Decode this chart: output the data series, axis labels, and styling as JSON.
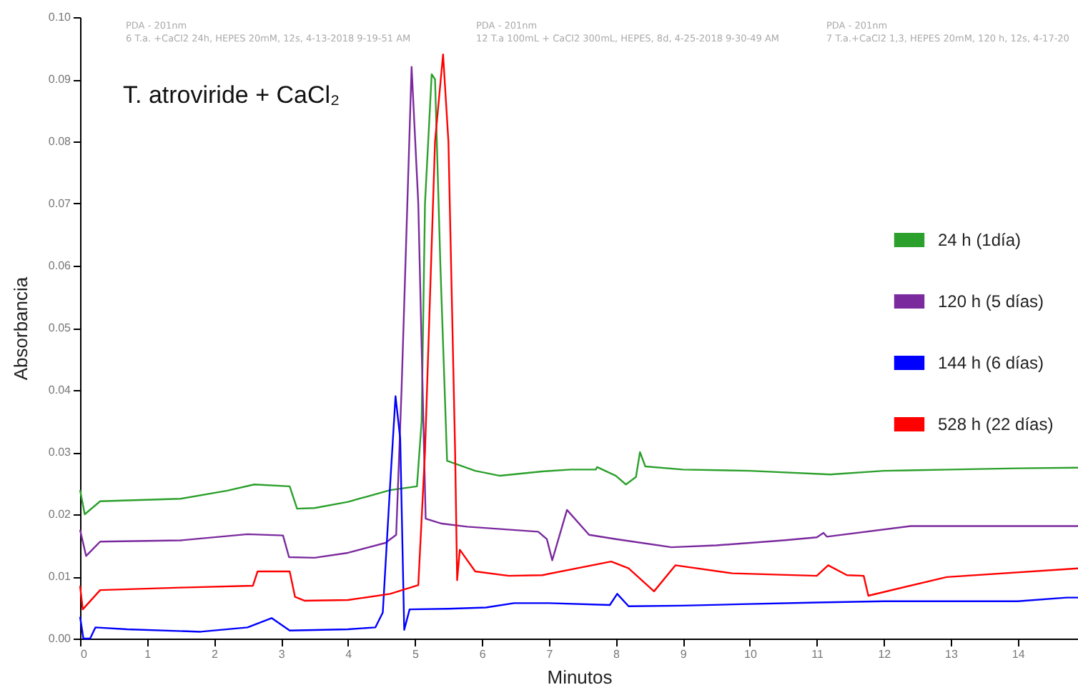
{
  "chart_data": {
    "type": "line",
    "title": "T. atroviride + CaCl₂",
    "xlabel": "Minutos",
    "ylabel": "Absorbancia",
    "annotations": [
      "PDA - 201nm",
      "6 T.a. +CaCl2 24h, HEPES 20mM, 12s, 4-13-2018 9-19-51 AM",
      "PDA - 201nm",
      "12 T.a 100mL + CaCl2 300mL, HEPES, 8d, 4-25-2018 9-30-49 AM",
      "PDA - 201nm",
      "7 T.a.+CaCl2 1,3, HEPES 20mM, 120 h, 12s, 4-17-20"
    ],
    "xlim": [
      0,
      14.9
    ],
    "xticks": [
      0,
      1,
      2,
      3,
      4,
      5,
      6,
      7,
      8,
      9,
      10,
      11,
      12,
      13,
      14
    ],
    "ylim": [
      0,
      0.1
    ],
    "yticks": [
      {
        "value": 0,
        "label": "0.00"
      },
      0.01,
      0.02,
      0.03,
      0.04,
      0.05,
      0.06,
      0.07,
      0.08,
      0.09,
      {
        "value": 0.1,
        "label": "0.10"
      }
    ],
    "legend": "right",
    "line_style": "solid",
    "marker": "none",
    "series": [
      {
        "name": "24 h (1día)",
        "color": "#2ca02c",
        "x": [
          0,
          0.07,
          0.3,
          1.5,
          2.2,
          2.6,
          3.13,
          3.24,
          3.5,
          4.0,
          4.63,
          5.03,
          5.1,
          5.15,
          5.25,
          5.3,
          5.38,
          5.48,
          5.9,
          6.27,
          6.9,
          7.33,
          7.7,
          7.72,
          8.0,
          8.15,
          8.3,
          8.36,
          8.44,
          9.0,
          10.0,
          11.2,
          12.0,
          13.0,
          14.0,
          14.9
        ],
        "values": [
          0.0239,
          0.02,
          0.0221,
          0.0225,
          0.0238,
          0.0248,
          0.0245,
          0.0209,
          0.021,
          0.022,
          0.0239,
          0.0245,
          0.035,
          0.07,
          0.0908,
          0.09,
          0.06,
          0.0286,
          0.027,
          0.0262,
          0.0269,
          0.0272,
          0.0272,
          0.0276,
          0.0262,
          0.0248,
          0.026,
          0.03,
          0.0277,
          0.0272,
          0.027,
          0.0264,
          0.027,
          0.0272,
          0.0274,
          0.0275
        ]
      },
      {
        "name": "120 h (5 días)",
        "color": "#7b2a9e",
        "x": [
          0,
          0.09,
          0.3,
          1.5,
          2.5,
          3.03,
          3.12,
          3.5,
          4.0,
          4.56,
          4.72,
          4.8,
          4.95,
          5.05,
          5.16,
          5.4,
          5.78,
          6.84,
          6.97,
          7.05,
          7.27,
          7.6,
          8.0,
          8.83,
          9.5,
          10.5,
          11.0,
          11.1,
          11.15,
          12.4,
          13.5,
          14.9
        ],
        "values": [
          0.0175,
          0.0133,
          0.0156,
          0.0158,
          0.0168,
          0.0166,
          0.0131,
          0.013,
          0.0138,
          0.0154,
          0.0167,
          0.04,
          0.092,
          0.07,
          0.0193,
          0.0185,
          0.018,
          0.0172,
          0.016,
          0.0126,
          0.0207,
          0.0167,
          0.016,
          0.0147,
          0.015,
          0.0158,
          0.0163,
          0.017,
          0.0164,
          0.0181,
          0.0181,
          0.0181
        ]
      },
      {
        "name": "144 h (6 días)",
        "color": "#0000ff",
        "x": [
          0,
          0.05,
          0.15,
          0.23,
          0.7,
          1.8,
          2.5,
          2.86,
          3.13,
          4.0,
          4.41,
          4.52,
          4.63,
          4.71,
          4.78,
          4.84,
          4.92,
          5.5,
          6.06,
          6.48,
          7.0,
          7.91,
          8.02,
          8.19,
          9.0,
          9.75,
          11.0,
          12.0,
          14.0,
          14.73,
          14.9
        ],
        "values": [
          0.0035,
          0,
          0,
          0.0018,
          0.0015,
          0.0011,
          0.0018,
          0.0033,
          0.0013,
          0.0015,
          0.0018,
          0.0042,
          0.0248,
          0.039,
          0.0322,
          0.0014,
          0.0047,
          0.0048,
          0.005,
          0.0057,
          0.0057,
          0.0054,
          0.0072,
          0.0052,
          0.0053,
          0.0055,
          0.0058,
          0.006,
          0.006,
          0.0066,
          0.0066
        ]
      },
      {
        "name": "528 h (22 días)",
        "color": "#ff0000",
        "x": [
          0,
          0.04,
          0.3,
          1.5,
          2.58,
          2.65,
          3.13,
          3.21,
          3.35,
          4.0,
          4.63,
          5.05,
          5.15,
          5.3,
          5.42,
          5.5,
          5.6,
          5.63,
          5.67,
          5.9,
          6.4,
          6.9,
          7.93,
          8.19,
          8.57,
          8.89,
          9.74,
          11.0,
          11.17,
          11.45,
          11.7,
          11.77,
          12.94,
          14.9
        ],
        "values": [
          0.0085,
          0.0047,
          0.0078,
          0.0082,
          0.0085,
          0.0108,
          0.0108,
          0.0067,
          0.0061,
          0.0062,
          0.0072,
          0.0086,
          0.03,
          0.08,
          0.094,
          0.08,
          0.03,
          0.0094,
          0.0143,
          0.0108,
          0.0101,
          0.0102,
          0.0124,
          0.0113,
          0.0076,
          0.0118,
          0.0105,
          0.0101,
          0.0118,
          0.0102,
          0.0101,
          0.0069,
          0.0099,
          0.0113
        ]
      }
    ]
  }
}
